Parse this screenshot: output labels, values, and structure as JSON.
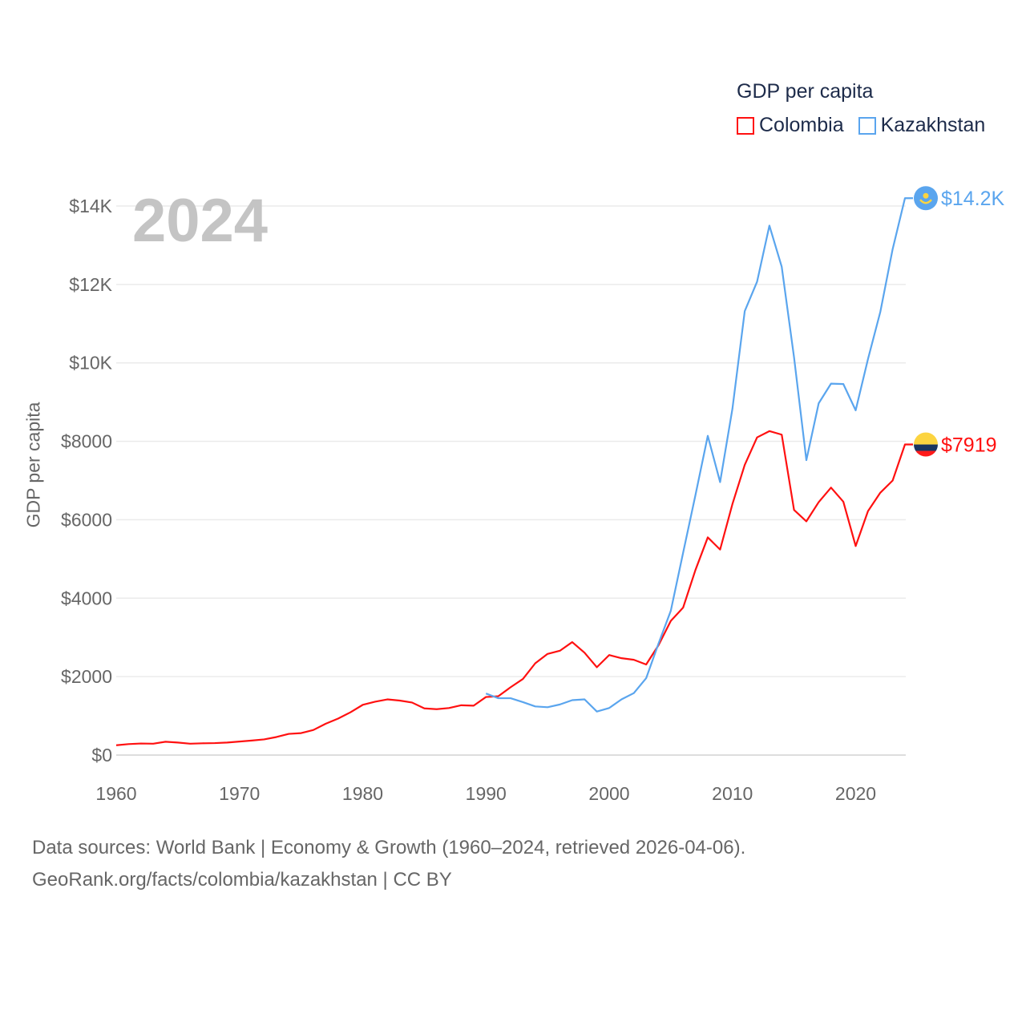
{
  "legend": {
    "title": "GDP per capita"
  },
  "footer": {
    "line1": "Data sources: World Bank | Economy & Growth (1960–2024, retrieved 2026-04-06).",
    "line2": "GeoRank.org/facts/colombia/kazakhstan | CC BY"
  },
  "chart_data": {
    "type": "line",
    "title": "GDP per capita",
    "current_year_label": "2024",
    "xlabel": "",
    "ylabel": "GDP per capita",
    "xlim": [
      1960,
      2024
    ],
    "ylim": [
      0,
      14500
    ],
    "x_ticks": [
      1960,
      1970,
      1980,
      1990,
      2000,
      2010,
      2020
    ],
    "x_tick_labels": [
      "1960",
      "1970",
      "1980",
      "1990",
      "2000",
      "2010",
      "2020"
    ],
    "y_ticks": [
      0,
      2000,
      4000,
      6000,
      8000,
      10000,
      12000,
      14000
    ],
    "y_tick_labels": [
      "$0",
      "$2000",
      "$4000",
      "$6000",
      "$8000",
      "$10K",
      "$12K",
      "$14K"
    ],
    "grid": true,
    "legend_position": "top-right",
    "series": [
      {
        "name": "Colombia",
        "color": "#ff1010",
        "start_year": 1960,
        "end_label": "$7919",
        "values": [
          250,
          280,
          295,
          290,
          340,
          320,
          290,
          300,
          305,
          320,
          345,
          370,
          400,
          460,
          540,
          560,
          640,
          800,
          930,
          1090,
          1280,
          1360,
          1420,
          1390,
          1340,
          1190,
          1170,
          1200,
          1270,
          1260,
          1480,
          1500,
          1730,
          1940,
          2340,
          2580,
          2660,
          2880,
          2610,
          2240,
          2550,
          2470,
          2430,
          2310,
          2800,
          3420,
          3760,
          4720,
          5550,
          5240,
          6400,
          7400,
          8100,
          8260,
          8170,
          6250,
          5960,
          6450,
          6820,
          6460,
          5330,
          6220,
          6690,
          7000,
          7919
        ]
      },
      {
        "name": "Kazakhstan",
        "color": "#5aa5ee",
        "start_year": 1990,
        "end_label": "$14.2K",
        "values": [
          1570,
          1450,
          1450,
          1350,
          1240,
          1220,
          1290,
          1400,
          1420,
          1110,
          1200,
          1420,
          1580,
          1960,
          2840,
          3680,
          5160,
          6630,
          8140,
          6960,
          8830,
          11320,
          12070,
          13500,
          12450,
          10140,
          7520,
          8970,
          9470,
          9460,
          8790,
          10100,
          11300,
          12900,
          14200
        ]
      }
    ]
  }
}
